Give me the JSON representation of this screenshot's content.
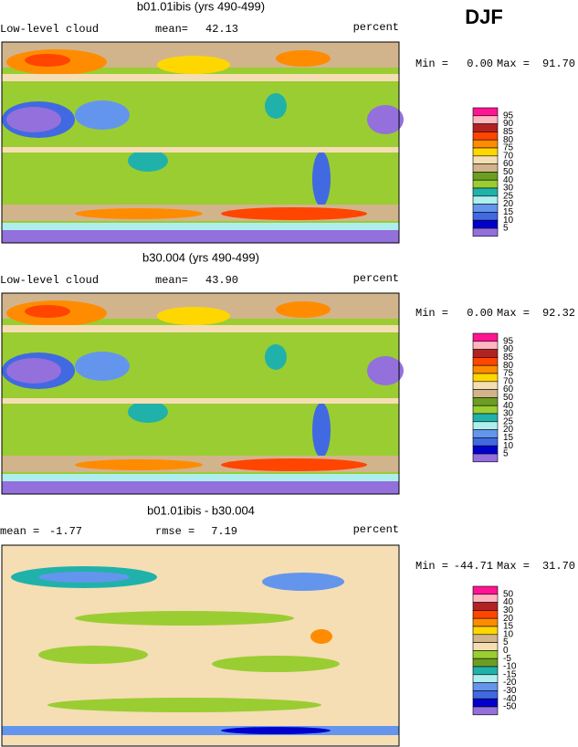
{
  "season": "DJF",
  "panels": [
    {
      "title": "b01.01ibis (yrs 490-499)",
      "variable": "Low-level cloud",
      "mean_label": "mean=",
      "mean": "42.13",
      "units": "percent",
      "min_label": "Min =",
      "min": "0.00",
      "max_label": "Max =",
      "max": "91.70",
      "colorbar": {
        "levels": [
          95,
          90,
          85,
          80,
          75,
          70,
          60,
          50,
          40,
          30,
          25,
          20,
          15,
          10,
          5
        ],
        "colors": [
          "#ff1493",
          "#ffb6c1",
          "#b22222",
          "#ff4500",
          "#ff8c00",
          "#ffd700",
          "#f5deb3",
          "#d2b48c",
          "#6b9e23",
          "#9acd32",
          "#20b2aa",
          "#afeeee",
          "#6495ed",
          "#4169e1",
          "#0000cd",
          "#9370db"
        ]
      }
    },
    {
      "title": "b30.004 (yrs 490-499)",
      "variable": "Low-level cloud",
      "mean_label": "mean=",
      "mean": "43.90",
      "units": "percent",
      "min_label": "Min =",
      "min": "0.00",
      "max_label": "Max =",
      "max": "92.32",
      "colorbar": {
        "levels": [
          95,
          90,
          85,
          80,
          75,
          70,
          60,
          50,
          40,
          30,
          25,
          20,
          15,
          10,
          5
        ],
        "colors": [
          "#ff1493",
          "#ffb6c1",
          "#b22222",
          "#ff4500",
          "#ff8c00",
          "#ffd700",
          "#f5deb3",
          "#d2b48c",
          "#6b9e23",
          "#9acd32",
          "#20b2aa",
          "#afeeee",
          "#6495ed",
          "#4169e1",
          "#0000cd",
          "#9370db"
        ]
      }
    },
    {
      "title": "b01.01ibis - b30.004",
      "mean_label": "mean =",
      "mean": "-1.77",
      "rmse_label": "rmse =",
      "rmse": "7.19",
      "units": "percent",
      "min_label": "Min =",
      "min": "-44.71",
      "max_label": "Max =",
      "max": "31.70",
      "colorbar": {
        "levels": [
          50,
          40,
          30,
          20,
          15,
          10,
          5,
          0,
          -5,
          -10,
          -15,
          -20,
          -30,
          -40,
          -50
        ],
        "colors": [
          "#ff1493",
          "#ffb6c1",
          "#b22222",
          "#ff4500",
          "#ff8c00",
          "#ffd700",
          "#d2b48c",
          "#f5deb3",
          "#9acd32",
          "#6b9e23",
          "#20b2aa",
          "#afeeee",
          "#6495ed",
          "#4169e1",
          "#0000cd",
          "#9370db"
        ]
      }
    }
  ]
}
